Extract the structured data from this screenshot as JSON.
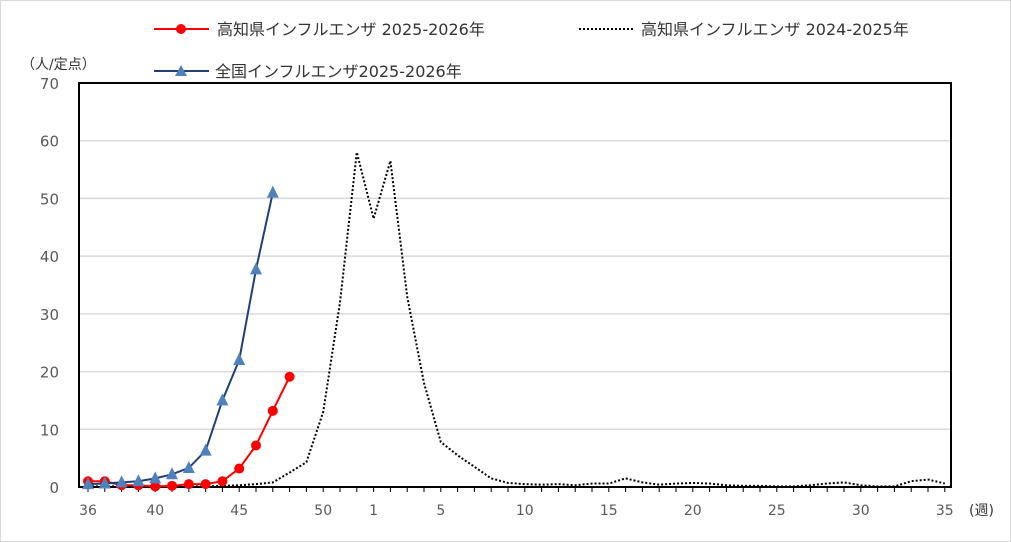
{
  "chart_data": {
    "type": "line",
    "ylabel": "（人/定点）",
    "xlabel": "(週)",
    "ylim": [
      0,
      70
    ],
    "yticks": [
      0,
      10,
      20,
      30,
      40,
      50,
      60,
      70
    ],
    "grid": true,
    "legend_position": "top",
    "weeks": [
      36,
      37,
      38,
      39,
      40,
      41,
      42,
      43,
      44,
      45,
      46,
      47,
      48,
      49,
      50,
      51,
      52,
      1,
      2,
      3,
      4,
      5,
      6,
      7,
      8,
      9,
      10,
      11,
      12,
      13,
      14,
      15,
      16,
      17,
      18,
      19,
      20,
      21,
      22,
      23,
      24,
      25,
      26,
      27,
      28,
      29,
      30,
      31,
      32,
      33,
      34,
      35
    ],
    "xtick_labels": [
      "36",
      "40",
      "45",
      "50",
      "1",
      "5",
      "10",
      "15",
      "20",
      "25",
      "30",
      "35"
    ],
    "series": [
      {
        "name": "高知県インフルエンザ 2025-2026年",
        "color": "#ff0000",
        "style": "solid",
        "marker": "circle",
        "values": [
          1.0,
          1.0,
          0.3,
          0.3,
          0.1,
          0.2,
          0.5,
          0.5,
          1.0,
          3.2,
          7.2,
          13.2,
          19.1
        ]
      },
      {
        "name": "高知県インフルエンザ 2024-2025年",
        "color": "#000000",
        "style": "dotted",
        "marker": "none",
        "values": [
          0.1,
          0.1,
          0.1,
          0.1,
          0.1,
          0.1,
          0.1,
          0.1,
          0.2,
          0.3,
          0.5,
          0.8,
          2.5,
          4.3,
          13,
          32,
          58,
          46.5,
          56.5,
          33,
          18,
          7.8,
          5.5,
          3.5,
          1.5,
          0.7,
          0.5,
          0.4,
          0.5,
          0.3,
          0.6,
          0.6,
          1.5,
          0.8,
          0.4,
          0.6,
          0.7,
          0.6,
          0.3,
          0.2,
          0.2,
          0.1,
          0.1,
          0.3,
          0.6,
          0.8,
          0.3,
          0.1,
          0.1,
          1.0,
          1.3,
          0.6
        ]
      },
      {
        "name": "全国インフルエンザ2025-2026年",
        "color": "#1f3f76",
        "marker_color": "#4f81bd",
        "style": "solid",
        "marker": "triangle",
        "values": [
          0.5,
          0.6,
          0.8,
          1.0,
          1.5,
          2.2,
          3.3,
          6.3,
          15,
          22,
          37.7,
          51
        ]
      }
    ]
  }
}
